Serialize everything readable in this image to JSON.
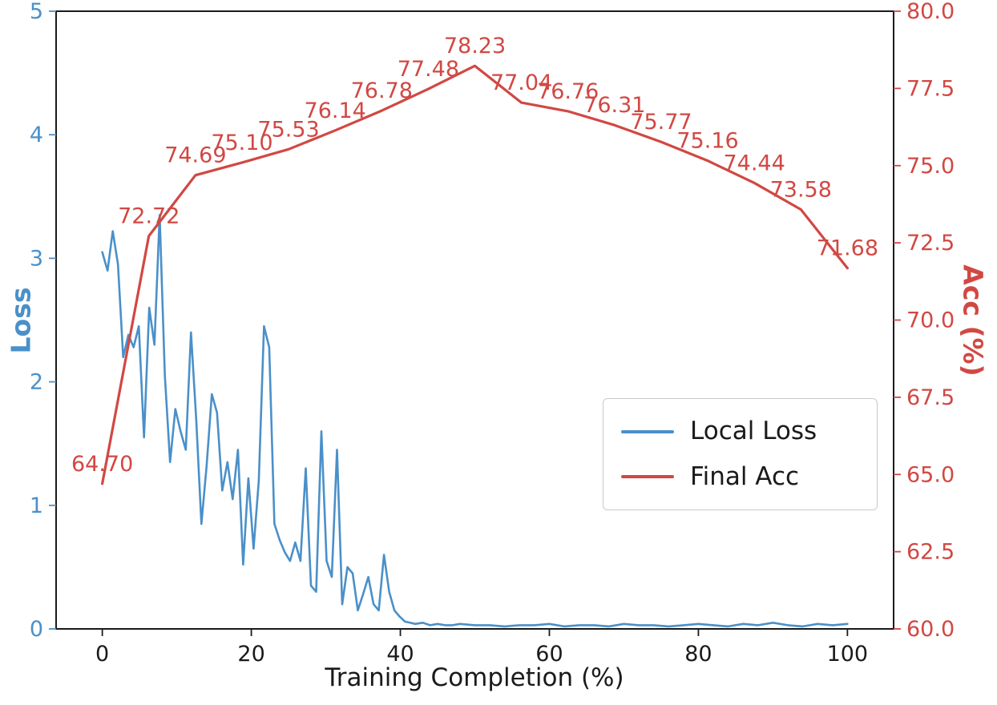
{
  "chart_data": {
    "type": "line",
    "title": "",
    "xlabel": "Training Completion (%)",
    "ylabel_left": "Loss",
    "ylabel_right": "Acc (%)",
    "xlim": [
      -6.2,
      106.2
    ],
    "ylim_left": [
      0,
      5
    ],
    "ylim_right": [
      60.0,
      80.0
    ],
    "xticks": [
      0,
      20,
      40,
      60,
      80,
      100
    ],
    "yticks_left": [
      0,
      1,
      2,
      3,
      4,
      5
    ],
    "yticks_right": [
      60.0,
      62.5,
      65.0,
      67.5,
      70.0,
      72.5,
      75.0,
      77.5,
      80.0
    ],
    "grid": false,
    "colors": {
      "loss_blue": "#4a90c9",
      "acc_red": "#d14843",
      "axis_black": "#1a1a1a",
      "legend_border": "#c9c9c9"
    },
    "legend": {
      "position": "center-right",
      "entries": [
        {
          "label": "Local Loss",
          "color": "#4a90c9"
        },
        {
          "label": "Final Acc",
          "color": "#d14843"
        }
      ]
    },
    "series": [
      {
        "name": "Local Loss",
        "axis": "left",
        "color": "#4a90c9",
        "points": [
          [
            0,
            3.05
          ],
          [
            0.7,
            2.9
          ],
          [
            1.4,
            3.22
          ],
          [
            2.1,
            2.95
          ],
          [
            2.8,
            2.2
          ],
          [
            3.5,
            2.38
          ],
          [
            4.2,
            2.28
          ],
          [
            4.9,
            2.45
          ],
          [
            5.6,
            1.55
          ],
          [
            6.3,
            2.6
          ],
          [
            7.0,
            2.3
          ],
          [
            7.7,
            3.35
          ],
          [
            8.4,
            2.05
          ],
          [
            9.1,
            1.35
          ],
          [
            9.8,
            1.78
          ],
          [
            10.5,
            1.6
          ],
          [
            11.2,
            1.45
          ],
          [
            11.9,
            2.4
          ],
          [
            12.6,
            1.7
          ],
          [
            13.3,
            0.85
          ],
          [
            14.0,
            1.32
          ],
          [
            14.7,
            1.9
          ],
          [
            15.4,
            1.75
          ],
          [
            16.1,
            1.12
          ],
          [
            16.8,
            1.35
          ],
          [
            17.5,
            1.05
          ],
          [
            18.2,
            1.45
          ],
          [
            18.9,
            0.52
          ],
          [
            19.6,
            1.22
          ],
          [
            20.3,
            0.65
          ],
          [
            21.0,
            1.2
          ],
          [
            21.7,
            2.45
          ],
          [
            22.4,
            2.28
          ],
          [
            23.1,
            0.85
          ],
          [
            23.8,
            0.72
          ],
          [
            24.5,
            0.62
          ],
          [
            25.2,
            0.55
          ],
          [
            25.9,
            0.7
          ],
          [
            26.6,
            0.55
          ],
          [
            27.3,
            1.3
          ],
          [
            28.0,
            0.35
          ],
          [
            28.7,
            0.3
          ],
          [
            29.4,
            1.6
          ],
          [
            30.1,
            0.55
          ],
          [
            30.8,
            0.42
          ],
          [
            31.5,
            1.45
          ],
          [
            32.2,
            0.2
          ],
          [
            32.9,
            0.5
          ],
          [
            33.6,
            0.45
          ],
          [
            34.3,
            0.15
          ],
          [
            35.0,
            0.28
          ],
          [
            35.7,
            0.42
          ],
          [
            36.4,
            0.2
          ],
          [
            37.1,
            0.15
          ],
          [
            37.8,
            0.6
          ],
          [
            38.5,
            0.3
          ],
          [
            39.2,
            0.15
          ],
          [
            39.9,
            0.1
          ],
          [
            40.6,
            0.06
          ],
          [
            41.3,
            0.05
          ],
          [
            42,
            0.04
          ],
          [
            43,
            0.05
          ],
          [
            44,
            0.03
          ],
          [
            45,
            0.04
          ],
          [
            46,
            0.03
          ],
          [
            47,
            0.03
          ],
          [
            48,
            0.04
          ],
          [
            50,
            0.03
          ],
          [
            52,
            0.03
          ],
          [
            54,
            0.02
          ],
          [
            56,
            0.03
          ],
          [
            58,
            0.03
          ],
          [
            60,
            0.04
          ],
          [
            62,
            0.02
          ],
          [
            64,
            0.03
          ],
          [
            66,
            0.03
          ],
          [
            68,
            0.02
          ],
          [
            70,
            0.04
          ],
          [
            72,
            0.03
          ],
          [
            74,
            0.03
          ],
          [
            76,
            0.02
          ],
          [
            78,
            0.03
          ],
          [
            80,
            0.04
          ],
          [
            82,
            0.03
          ],
          [
            84,
            0.02
          ],
          [
            86,
            0.04
          ],
          [
            88,
            0.03
          ],
          [
            90,
            0.05
          ],
          [
            92,
            0.03
          ],
          [
            94,
            0.02
          ],
          [
            96,
            0.04
          ],
          [
            98,
            0.03
          ],
          [
            100,
            0.04
          ]
        ]
      },
      {
        "name": "Final Acc",
        "axis": "right",
        "color": "#d14843",
        "points": [
          [
            0,
            64.7
          ],
          [
            6.25,
            72.72
          ],
          [
            12.5,
            74.69
          ],
          [
            18.75,
            75.1
          ],
          [
            25,
            75.53
          ],
          [
            31.25,
            76.14
          ],
          [
            37.5,
            76.78
          ],
          [
            43.75,
            77.48
          ],
          [
            50,
            78.23
          ],
          [
            56.25,
            77.04
          ],
          [
            62.5,
            76.76
          ],
          [
            68.75,
            76.31
          ],
          [
            75,
            75.77
          ],
          [
            81.25,
            75.16
          ],
          [
            87.5,
            74.44
          ],
          [
            93.75,
            73.58
          ],
          [
            100,
            71.68
          ]
        ],
        "point_labels": [
          "64.70",
          "72.72",
          "74.69",
          "75.10",
          "75.53",
          "76.14",
          "76.78",
          "77.48",
          "78.23",
          "77.04",
          "76.76",
          "76.31",
          "75.77",
          "75.16",
          "74.44",
          "73.58",
          "71.68"
        ]
      }
    ]
  }
}
